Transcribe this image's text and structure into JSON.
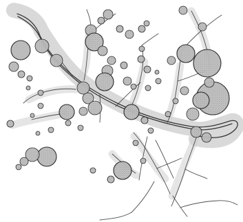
{
  "map": {
    "colors": {
      "background": "#ffffff",
      "corridor": "#cfcfcf",
      "river": "#2f2f2f",
      "circle_fill": "#bdbdbd",
      "circle_stroke": "#1f1f1f"
    },
    "legend_items": [],
    "features": {
      "river_corridor": "shaded-band",
      "river_lines": "stream-network",
      "settlements": "stippled-circles"
    }
  }
}
